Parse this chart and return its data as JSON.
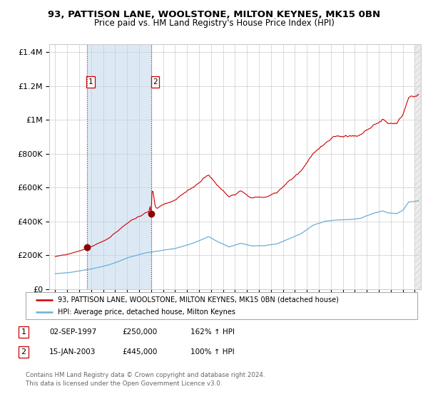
{
  "title": "93, PATTISON LANE, WOOLSTONE, MILTON KEYNES, MK15 0BN",
  "subtitle": "Price paid vs. HM Land Registry's House Price Index (HPI)",
  "legend_line1": "93, PATTISON LANE, WOOLSTONE, MILTON KEYNES, MK15 0BN (detached house)",
  "legend_line2": "HPI: Average price, detached house, Milton Keynes",
  "table_row1": [
    "1",
    "02-SEP-1997",
    "£250,000",
    "162% ↑ HPI"
  ],
  "table_row2": [
    "2",
    "15-JAN-2003",
    "£445,000",
    "100% ↑ HPI"
  ],
  "footer": "Contains HM Land Registry data © Crown copyright and database right 2024.\nThis data is licensed under the Open Government Licence v3.0.",
  "sale1_year": 1997.67,
  "sale1_price": 250000,
  "sale2_year": 2003.04,
  "sale2_price": 445000,
  "hpi_color": "#6baed6",
  "price_color": "#cc0000",
  "shade_color": "#dce9f5",
  "vline_color": "#cc0000",
  "ylim": [
    0,
    1450000
  ],
  "xlim_start": 1994.5,
  "xlim_end": 2025.5,
  "background_color": "#ffffff",
  "grid_color": "#cccccc",
  "title_fontsize": 9.5,
  "subtitle_fontsize": 8.5
}
